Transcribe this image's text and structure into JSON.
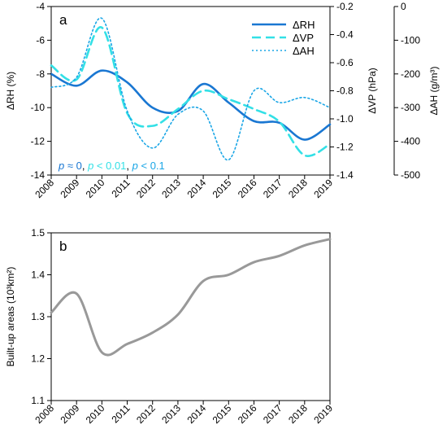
{
  "chart_data": [
    {
      "type": "line",
      "panel_label": "a",
      "x": [
        2008,
        2009,
        2010,
        2011,
        2012,
        2013,
        2014,
        2015,
        2016,
        2017,
        2018,
        2019
      ],
      "xlim": [
        2008,
        2019
      ],
      "series": [
        {
          "name": "ΔRH",
          "axis": "left",
          "style": "solid",
          "color": "#1a77d2",
          "values": [
            -8.0,
            -8.7,
            -7.8,
            -8.5,
            -10.0,
            -10.2,
            -8.6,
            -9.7,
            -10.8,
            -10.9,
            -11.9,
            -11.0
          ]
        },
        {
          "name": "ΔVP",
          "axis": "right1",
          "style": "dashed",
          "color": "#33e0e6",
          "values": [
            -0.62,
            -0.72,
            -0.35,
            -0.96,
            -1.05,
            -0.93,
            -0.8,
            -0.86,
            -0.93,
            -1.02,
            -1.26,
            -1.18
          ]
        },
        {
          "name": "ΔAH",
          "axis": "right2",
          "style": "dotted",
          "color": "#1aa6e6",
          "values": [
            -240,
            -210,
            -35,
            -310,
            -420,
            -320,
            -310,
            -455,
            -250,
            -285,
            -270,
            -300
          ]
        }
      ],
      "axes": {
        "left": {
          "label": "ΔRH (%)",
          "lim": [
            -14,
            -4
          ],
          "ticks": [
            "-4",
            "-6",
            "-8",
            "-10",
            "-12",
            "-14"
          ]
        },
        "right1": {
          "label": "ΔVP (hPa)",
          "lim": [
            -1.4,
            -0.2
          ],
          "ticks": [
            "-0.2",
            "-0.4",
            "-0.6",
            "-0.8",
            "-1.0",
            "-1.2",
            "-1.4"
          ]
        },
        "right2": {
          "label": "ΔAH (g/m³)",
          "lim": [
            -500,
            0
          ],
          "ticks": [
            "0",
            "-100",
            "-200",
            "-300",
            "-400",
            "-500"
          ]
        }
      },
      "legend_placement": "top-right",
      "annotation": [
        {
          "text": "p",
          "color": "#1a77d2",
          "italic": true
        },
        {
          "text": " ≈ 0",
          "color": "#1a77d2",
          "italic": false
        },
        {
          "text": ", ",
          "color": "#000000",
          "italic": false
        },
        {
          "text": "p",
          "color": "#33e0e6",
          "italic": true
        },
        {
          "text": " < 0.01",
          "color": "#33e0e6",
          "italic": false
        },
        {
          "text": ", ",
          "color": "#000000",
          "italic": false
        },
        {
          "text": "p",
          "color": "#1aa6e6",
          "italic": true
        },
        {
          "text": " < 0.1",
          "color": "#1aa6e6",
          "italic": false
        }
      ],
      "x_ticks": [
        "2008",
        "2009",
        "2010",
        "2011",
        "2012",
        "2013",
        "2014",
        "2015",
        "2016",
        "2017",
        "2018",
        "2019"
      ]
    },
    {
      "type": "line",
      "panel_label": "b",
      "x": [
        2008,
        2009,
        2010,
        2011,
        2012,
        2013,
        2014,
        2015,
        2016,
        2017,
        2018,
        2019
      ],
      "xlim": [
        2008,
        2019
      ],
      "series": [
        {
          "name": "",
          "color": "#999999",
          "values": [
            1.31,
            1.355,
            1.215,
            1.235,
            1.262,
            1.305,
            1.385,
            1.4,
            1.43,
            1.445,
            1.47,
            1.485
          ]
        }
      ],
      "axes": {
        "left": {
          "label": "Built-up areas (10³km²)",
          "lim": [
            1.1,
            1.5
          ],
          "ticks": [
            "1.5",
            "1.4",
            "1.3",
            "1.2",
            "1.1"
          ]
        }
      },
      "x_ticks": [
        "2008",
        "2009",
        "2010",
        "2011",
        "2012",
        "2013",
        "2014",
        "2015",
        "2016",
        "2017",
        "2018",
        "2019"
      ]
    }
  ]
}
